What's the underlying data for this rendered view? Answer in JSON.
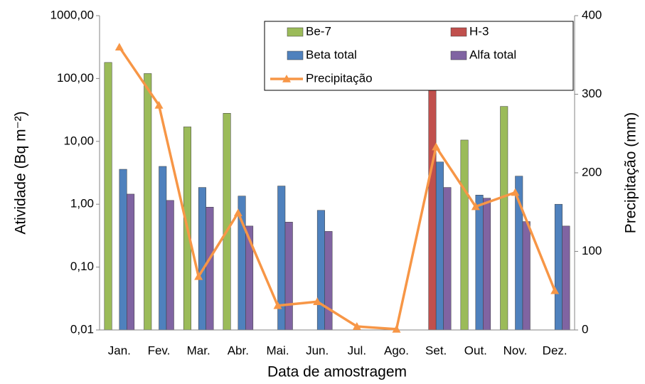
{
  "chart_data": {
    "type": "bar-line",
    "x_label": "Data de amostragem",
    "y_label": "Atividade (Bq m⁻²)",
    "y2_label": "Precipitação (mm)",
    "categories": [
      "Jan.",
      "Fev.",
      "Mar.",
      "Abr.",
      "Mai.",
      "Jun.",
      "Jul.",
      "Ago.",
      "Set.",
      "Out.",
      "Nov.",
      "Dez."
    ],
    "y_scale": "log",
    "ylim": [
      0.01,
      1000
    ],
    "yticks": [
      {
        "value": 0.01,
        "label": "0,01"
      },
      {
        "value": 0.1,
        "label": "0,10"
      },
      {
        "value": 1,
        "label": "1,00"
      },
      {
        "value": 10,
        "label": "10,00"
      },
      {
        "value": 100,
        "label": "100,00"
      },
      {
        "value": 1000,
        "label": "1000,00"
      }
    ],
    "y2lim": [
      0,
      400
    ],
    "y2ticks": [
      0,
      100,
      200,
      300,
      400
    ],
    "legend": "top-right",
    "series": [
      {
        "name": "Be-7",
        "type": "bar",
        "color": "#9bbb59",
        "values": [
          180,
          120,
          17,
          28,
          null,
          null,
          null,
          null,
          null,
          10.5,
          36,
          null
        ]
      },
      {
        "name": "H-3",
        "type": "bar",
        "color": "#c0504d",
        "values": [
          null,
          null,
          null,
          null,
          null,
          null,
          null,
          null,
          170,
          null,
          null,
          null
        ]
      },
      {
        "name": "Beta total",
        "type": "bar",
        "color": "#4f81bd",
        "values": [
          3.6,
          4.0,
          1.85,
          1.35,
          1.95,
          0.8,
          null,
          null,
          4.7,
          1.4,
          2.8,
          1.0
        ]
      },
      {
        "name": "Alfa total",
        "type": "bar",
        "color": "#8064a2",
        "values": [
          1.45,
          1.15,
          0.9,
          0.45,
          0.52,
          0.37,
          null,
          null,
          1.85,
          1.25,
          0.53,
          0.45
        ]
      },
      {
        "name": "Precipitação",
        "type": "line",
        "axis": "y2",
        "color": "#f79646",
        "values": [
          360,
          286,
          68,
          149,
          31,
          36,
          4.5,
          1,
          233,
          157,
          175,
          50
        ]
      }
    ]
  }
}
